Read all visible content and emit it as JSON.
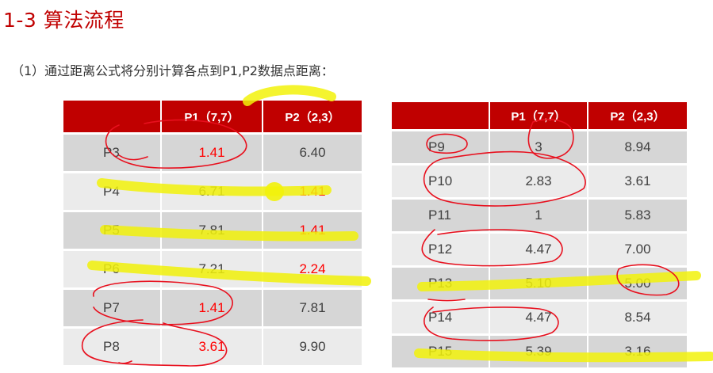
{
  "title": "1-3 算法流程",
  "subtitle": "（1）通过距离公式将分别计算各点到P1,P2数据点距离：",
  "table_left": {
    "headers": [
      "",
      "P1（7,7）",
      "P2（2,3）"
    ],
    "rows": [
      {
        "point": "P3",
        "p1": "1.41",
        "p2": "6.40",
        "near": "p1"
      },
      {
        "point": "P4",
        "p1": "6.71",
        "p2": "1.41",
        "near": "p2"
      },
      {
        "point": "P5",
        "p1": "7.81",
        "p2": "1.41",
        "near": "p2"
      },
      {
        "point": "P6",
        "p1": "7.21",
        "p2": "2.24",
        "near": "p2"
      },
      {
        "point": "P7",
        "p1": "1.41",
        "p2": "7.81",
        "near": "p1"
      },
      {
        "point": "P8",
        "p1": "3.61",
        "p2": "9.90",
        "near": "p1"
      }
    ]
  },
  "table_right": {
    "headers": [
      "",
      "P1（7,7）",
      "P2（2,3）"
    ],
    "rows": [
      {
        "point": "P9",
        "p1": "3",
        "p2": "8.94"
      },
      {
        "point": "P10",
        "p1": "2.83",
        "p2": "3.61"
      },
      {
        "point": "P11",
        "p1": "1",
        "p2": "5.83"
      },
      {
        "point": "P12",
        "p1": "4.47",
        "p2": "7.00"
      },
      {
        "point": "P13",
        "p1": "5.10",
        "p2": "5.00"
      },
      {
        "point": "P14",
        "p1": "4.47",
        "p2": "8.54"
      },
      {
        "point": "P15",
        "p1": "5.39",
        "p2": "3.16"
      }
    ]
  },
  "colors": {
    "accent": "#c00000",
    "highlight_text": "#ff0000",
    "ink_red": "#e8101e",
    "ink_yellow": "#f2f20a"
  }
}
